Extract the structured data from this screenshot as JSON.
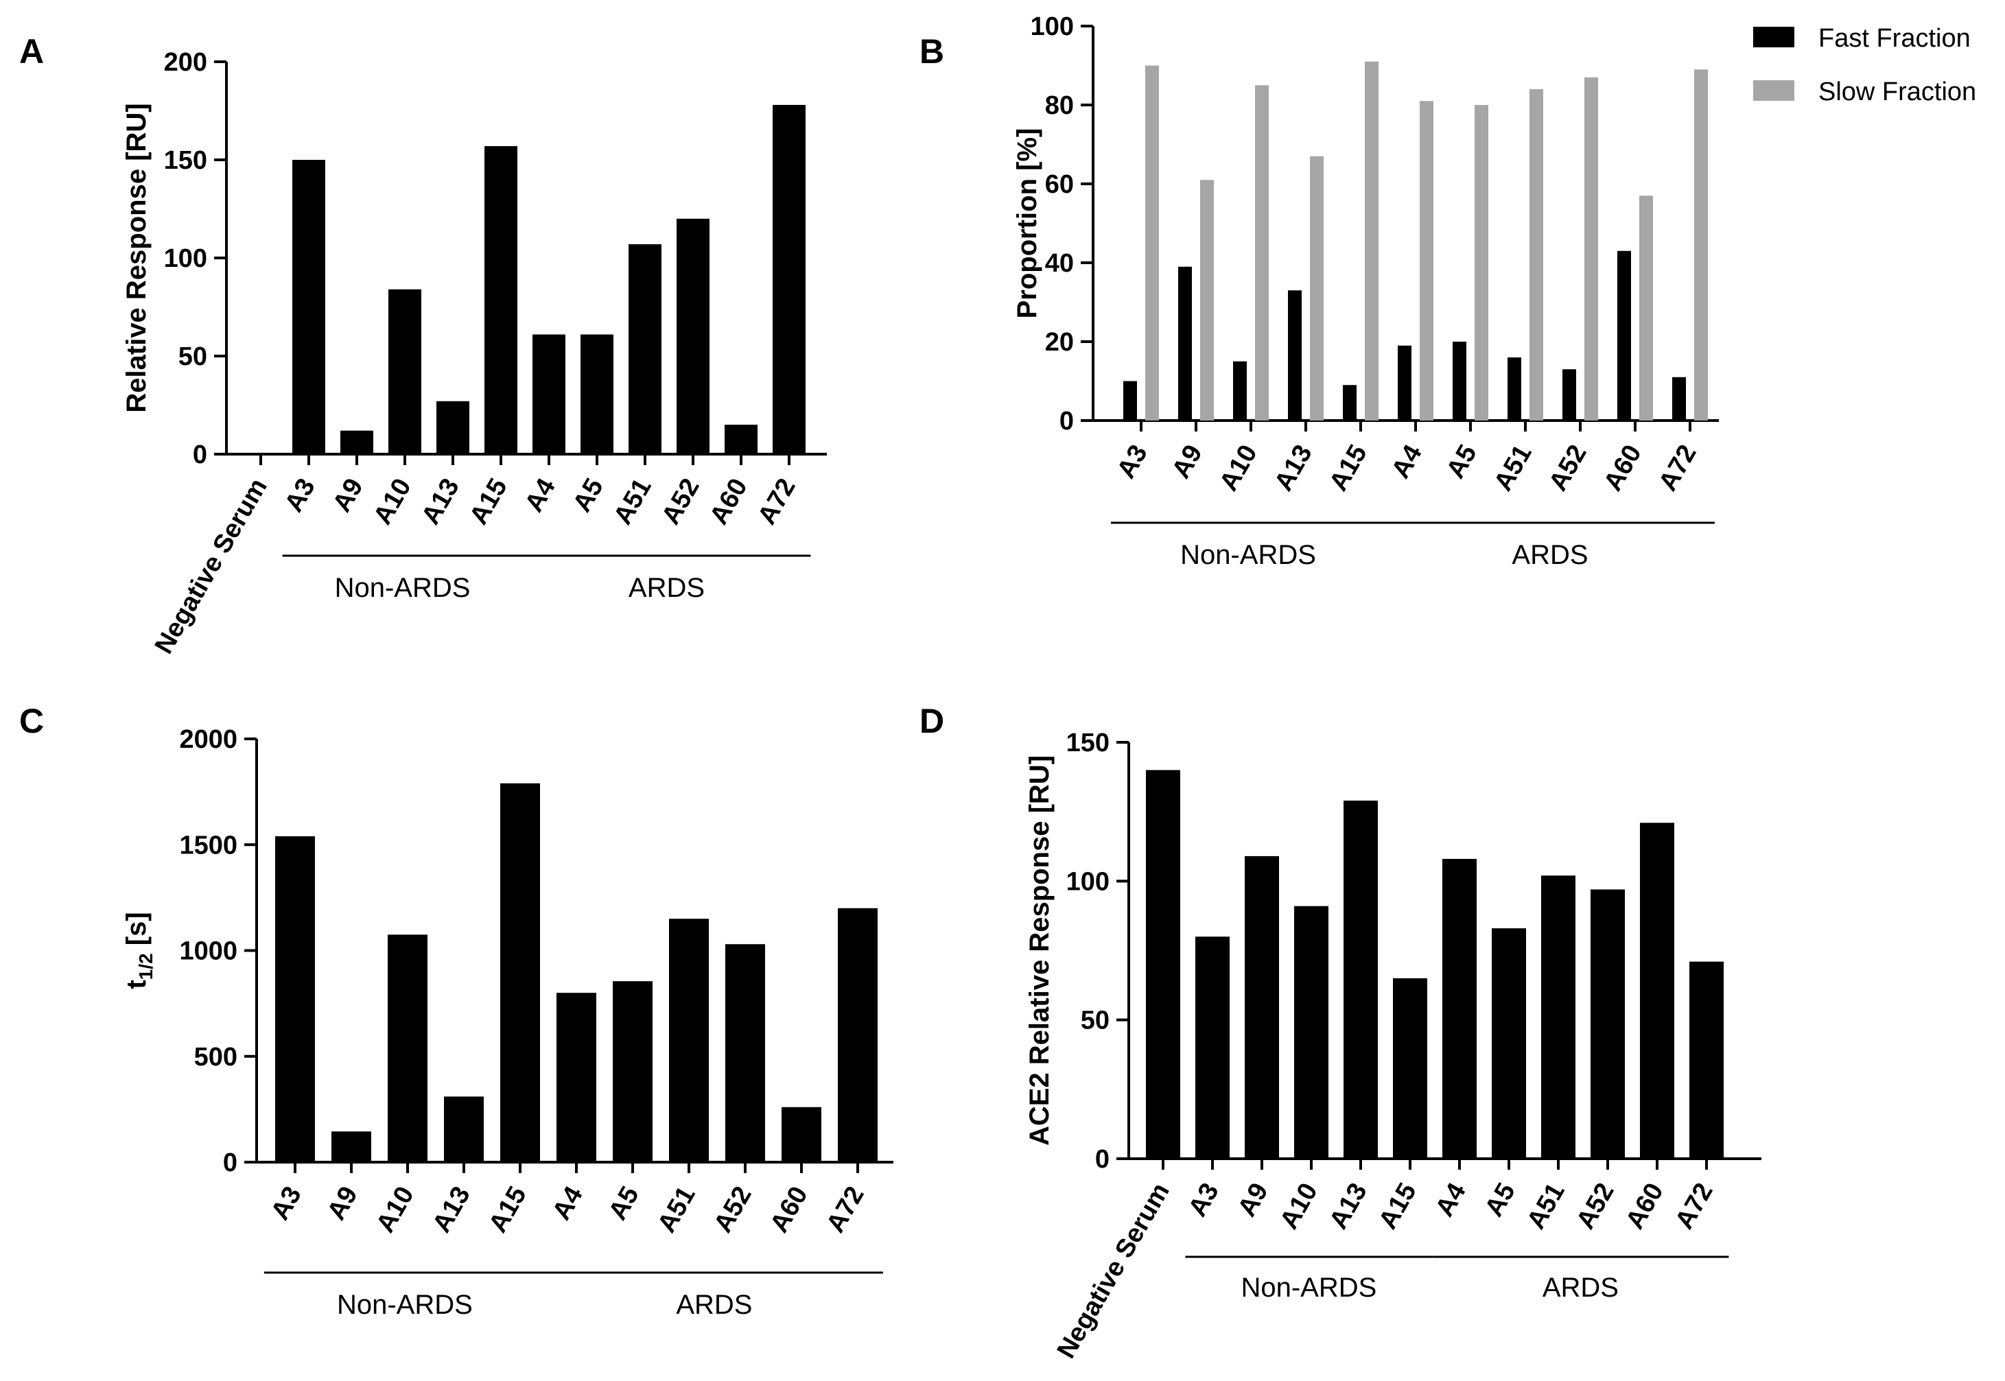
{
  "chart_data": [
    {
      "panel": "A",
      "type": "bar",
      "ylabel": "Relative Response [RU]",
      "ylim": [
        0,
        200
      ],
      "yticks": [
        0,
        50,
        100,
        150,
        200
      ],
      "categories": [
        "Negative Serum",
        "A3",
        "A9",
        "A10",
        "A13",
        "A15",
        "A4",
        "A5",
        "A51",
        "A52",
        "A60",
        "A72"
      ],
      "series": [
        {
          "name": "Relative Response",
          "color": "#000000",
          "values": [
            0,
            150,
            12,
            84,
            27,
            157,
            61,
            61,
            107,
            120,
            15,
            178
          ]
        }
      ],
      "groups": [
        {
          "label": "Non-ARDS",
          "from": 1,
          "to": 5
        },
        {
          "label": "ARDS",
          "from": 6,
          "to": 11
        }
      ]
    },
    {
      "panel": "B",
      "type": "bar",
      "ylabel": "Proportion [%]",
      "ylim": [
        0,
        100
      ],
      "yticks": [
        0,
        20,
        40,
        60,
        80,
        100
      ],
      "categories": [
        "A3",
        "A9",
        "A10",
        "A13",
        "A15",
        "A4",
        "A5",
        "A51",
        "A52",
        "A60",
        "A72"
      ],
      "series": [
        {
          "name": "Fast Fraction",
          "color": "#000000",
          "values": [
            10,
            39,
            15,
            33,
            9,
            19,
            20,
            16,
            13,
            43,
            11
          ]
        },
        {
          "name": "Slow Fraction",
          "color": "#a6a6a6",
          "values": [
            90,
            61,
            85,
            67,
            91,
            81,
            80,
            84,
            87,
            57,
            89
          ]
        }
      ],
      "legend": "top-right",
      "groups": [
        {
          "label": "Non-ARDS",
          "from": 0,
          "to": 4
        },
        {
          "label": "ARDS",
          "from": 5,
          "to": 10
        }
      ]
    },
    {
      "panel": "C",
      "type": "bar",
      "ylabel_main": "t",
      "ylabel_sub": "1/2",
      "ylabel_unit": " [s]",
      "ylim": [
        0,
        2000
      ],
      "yticks": [
        0,
        500,
        1000,
        1500,
        2000
      ],
      "categories": [
        "A3",
        "A9",
        "A10",
        "A13",
        "A15",
        "A4",
        "A5",
        "A51",
        "A52",
        "A60",
        "A72"
      ],
      "series": [
        {
          "name": "t1/2",
          "color": "#000000",
          "values": [
            1540,
            145,
            1075,
            310,
            1790,
            800,
            855,
            1150,
            1030,
            260,
            1200
          ]
        }
      ],
      "groups": [
        {
          "label": "Non-ARDS",
          "from": 0,
          "to": 4
        },
        {
          "label": "ARDS",
          "from": 5,
          "to": 10
        }
      ]
    },
    {
      "panel": "D",
      "type": "bar",
      "ylabel": "ACE2 Relative Response [RU]",
      "ylim": [
        0,
        150
      ],
      "yticks": [
        0,
        50,
        100,
        150
      ],
      "categories": [
        "Negative Serum",
        "A3",
        "A9",
        "A10",
        "A13",
        "A15",
        "A4",
        "A5",
        "A51",
        "A52",
        "A60",
        "A72"
      ],
      "series": [
        {
          "name": "ACE2 Relative Response",
          "color": "#000000",
          "values": [
            140,
            80,
            109,
            91,
            129,
            65,
            108,
            83,
            102,
            97,
            121,
            71
          ]
        }
      ],
      "groups": [
        {
          "label": "Non-ARDS",
          "from": 1,
          "to": 5
        },
        {
          "label": "ARDS",
          "from": 6,
          "to": 11
        }
      ]
    }
  ]
}
